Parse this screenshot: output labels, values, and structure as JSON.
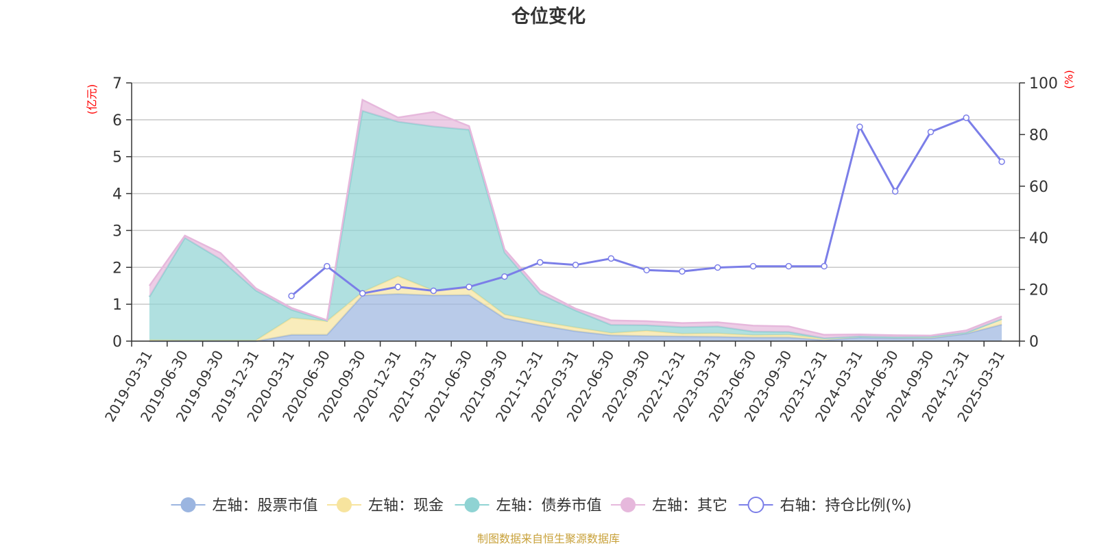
{
  "chart_data": {
    "type": "area",
    "title": "仓位变化",
    "left_axis_unit": "(亿元)",
    "right_axis_unit": "(%)",
    "categories": [
      "2019-03-31",
      "2019-06-30",
      "2019-09-30",
      "2019-12-31",
      "2020-03-31",
      "2020-06-30",
      "2020-09-30",
      "2020-12-31",
      "2021-03-31",
      "2021-06-30",
      "2021-09-30",
      "2021-12-31",
      "2022-03-31",
      "2022-06-30",
      "2022-09-30",
      "2022-12-31",
      "2023-03-31",
      "2023-06-30",
      "2023-09-30",
      "2023-12-31",
      "2024-03-31",
      "2024-06-30",
      "2024-09-30",
      "2024-12-31",
      "2025-03-31"
    ],
    "left_ylim": [
      0,
      7
    ],
    "left_yticks": [
      "0",
      "1",
      "2",
      "3",
      "4",
      "5",
      "6",
      "7"
    ],
    "right_ylim": [
      0,
      100
    ],
    "right_yticks": [
      "0",
      "20",
      "40",
      "60",
      "80",
      "100"
    ],
    "stacked": true,
    "series": [
      {
        "name": "左轴：股票市值",
        "axis": "left",
        "color": "#9bb5e0",
        "values": [
          0,
          0,
          0,
          0,
          0.17,
          0.17,
          1.24,
          1.28,
          1.24,
          1.25,
          0.62,
          0.43,
          0.27,
          0.16,
          0.14,
          0.13,
          0.12,
          0.1,
          0.1,
          0.03,
          0.1,
          0.08,
          0.08,
          0.2,
          0.45
        ]
      },
      {
        "name": "左轴：现金",
        "axis": "left",
        "color": "#f7e49e",
        "values": [
          0.03,
          0.02,
          0.02,
          0.02,
          0.46,
          0.37,
          0.09,
          0.48,
          0.13,
          0.19,
          0.1,
          0.1,
          0.1,
          0.06,
          0.14,
          0.07,
          0.09,
          0.06,
          0.07,
          0.04,
          0.03,
          0.03,
          0.04,
          0.03,
          0.15
        ]
      },
      {
        "name": "左轴：债券市值",
        "axis": "left",
        "color": "#8fd3d3",
        "values": [
          1.17,
          2.78,
          2.2,
          1.35,
          0.22,
          0.01,
          4.91,
          4.19,
          4.45,
          4.29,
          1.68,
          0.75,
          0.46,
          0.22,
          0.15,
          0.18,
          0.19,
          0.1,
          0.08,
          0.01,
          0,
          0,
          0,
          0,
          0
        ]
      },
      {
        "name": "左轴：其它",
        "axis": "left",
        "color": "#e6b8dc",
        "values": [
          0.3,
          0.06,
          0.17,
          0.06,
          0.05,
          0.02,
          0.3,
          0.11,
          0.39,
          0.1,
          0.09,
          0.1,
          0.05,
          0.12,
          0.11,
          0.11,
          0.11,
          0.16,
          0.15,
          0.09,
          0.05,
          0.05,
          0.03,
          0.06,
          0.07
        ]
      },
      {
        "name": "右轴：持仓比例(%)",
        "axis": "right",
        "type": "line",
        "color": "#7b7ee8",
        "values": [
          null,
          null,
          null,
          null,
          17.5,
          29,
          18.5,
          21,
          19.5,
          21,
          25,
          30.5,
          29.5,
          32,
          27.5,
          27,
          28.5,
          29,
          29,
          29,
          83,
          58,
          81,
          86.5,
          69.5
        ]
      }
    ],
    "legend_position": "bottom",
    "grid": true
  },
  "source_note": "制图数据来自恒生聚源数据库"
}
